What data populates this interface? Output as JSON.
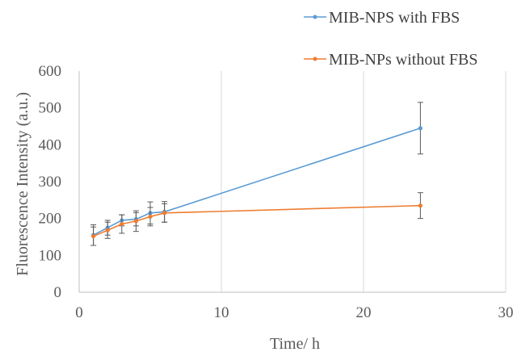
{
  "chart_data": {
    "type": "line",
    "title": "",
    "xlabel": "Time/ h",
    "ylabel": "Fluorescence Intensity (a.u.)",
    "xlim": [
      0,
      30
    ],
    "ylim": [
      0,
      600
    ],
    "x_ticks": [
      "0",
      "10",
      "20",
      "30"
    ],
    "y_ticks": [
      "0",
      "100",
      "200",
      "300",
      "400",
      "500",
      "600"
    ],
    "grid": "vertical",
    "legend_position": "top-right",
    "error_bars": true,
    "series": [
      {
        "name": "MIB-NPS with FBS",
        "color": "#5B9BD5",
        "x": [
          1,
          2,
          3,
          4,
          5,
          6,
          24
        ],
        "y": [
          155,
          175,
          195,
          198,
          215,
          218,
          445
        ],
        "err": [
          28,
          20,
          15,
          18,
          30,
          28,
          70
        ]
      },
      {
        "name": "MIB-NPs without FBS",
        "color": "#ED7D31",
        "x": [
          1,
          2,
          3,
          4,
          5,
          6,
          24
        ],
        "y": [
          152,
          168,
          185,
          193,
          205,
          215,
          235
        ],
        "err": [
          25,
          22,
          25,
          28,
          25,
          25,
          35
        ]
      }
    ]
  }
}
